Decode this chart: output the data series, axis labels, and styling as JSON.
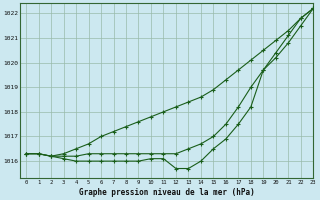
{
  "title": "Graphe pression niveau de la mer (hPa)",
  "bg_color": "#cce8f0",
  "grid_color": "#99bbaa",
  "line_color": "#1a5e1a",
  "xlim": [
    -0.5,
    23
  ],
  "ylim": [
    1015.3,
    1022.4
  ],
  "yticks": [
    1016,
    1017,
    1018,
    1019,
    1020,
    1021,
    1022
  ],
  "xticks": [
    0,
    1,
    2,
    3,
    4,
    5,
    6,
    7,
    8,
    9,
    10,
    11,
    12,
    13,
    14,
    15,
    16,
    17,
    18,
    19,
    20,
    21,
    22,
    23
  ],
  "series1": [
    1016.3,
    1016.3,
    1016.2,
    1016.3,
    1016.5,
    1016.7,
    1017.0,
    1017.2,
    1017.4,
    1017.6,
    1017.8,
    1018.0,
    1018.2,
    1018.4,
    1018.6,
    1018.9,
    1019.3,
    1019.7,
    1020.1,
    1020.5,
    1020.9,
    1021.3,
    1021.8,
    1022.2
  ],
  "series2": [
    1016.3,
    1016.3,
    1016.2,
    1016.2,
    1016.2,
    1016.3,
    1016.3,
    1016.3,
    1016.3,
    1016.3,
    1016.3,
    1016.3,
    1016.3,
    1016.5,
    1016.7,
    1017.0,
    1017.5,
    1018.2,
    1019.0,
    1019.7,
    1020.2,
    1020.8,
    1021.5,
    1022.2
  ],
  "series3": [
    1016.3,
    1016.3,
    1016.2,
    1016.1,
    1016.0,
    1016.0,
    1016.0,
    1016.0,
    1016.0,
    1016.0,
    1016.1,
    1016.1,
    1015.7,
    1015.7,
    1016.0,
    1016.5,
    1016.9,
    1017.5,
    1018.2,
    1019.7,
    1020.4,
    1021.1,
    1021.8,
    1022.2
  ]
}
